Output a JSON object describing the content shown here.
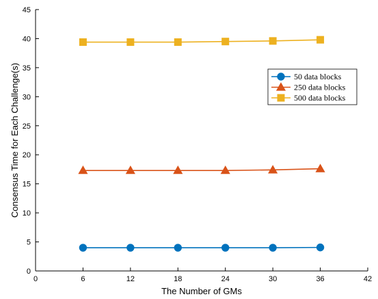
{
  "chart_data": {
    "type": "line",
    "title": "",
    "xlabel": "The Number of GMs",
    "ylabel": "Consensus Time for Each Challenge(s)",
    "xlim": [
      0,
      42
    ],
    "ylim": [
      0,
      45
    ],
    "xticks": [
      0,
      6,
      12,
      18,
      24,
      30,
      36,
      42
    ],
    "yticks": [
      0,
      5,
      10,
      15,
      20,
      25,
      30,
      35,
      40,
      45
    ],
    "x": [
      6,
      12,
      18,
      24,
      30,
      36
    ],
    "grid": false,
    "legend_position": "top-right",
    "series": [
      {
        "name": "50 data blocks",
        "values": [
          4.0,
          4.0,
          4.0,
          4.0,
          4.0,
          4.05
        ],
        "color": "#0072BD",
        "marker": "circle"
      },
      {
        "name": "250 data blocks",
        "values": [
          17.3,
          17.3,
          17.3,
          17.3,
          17.4,
          17.6
        ],
        "color": "#D95319",
        "marker": "triangle"
      },
      {
        "name": "500 data blocks",
        "values": [
          39.4,
          39.4,
          39.4,
          39.5,
          39.6,
          39.8
        ],
        "color": "#EDB120",
        "marker": "square"
      }
    ]
  }
}
